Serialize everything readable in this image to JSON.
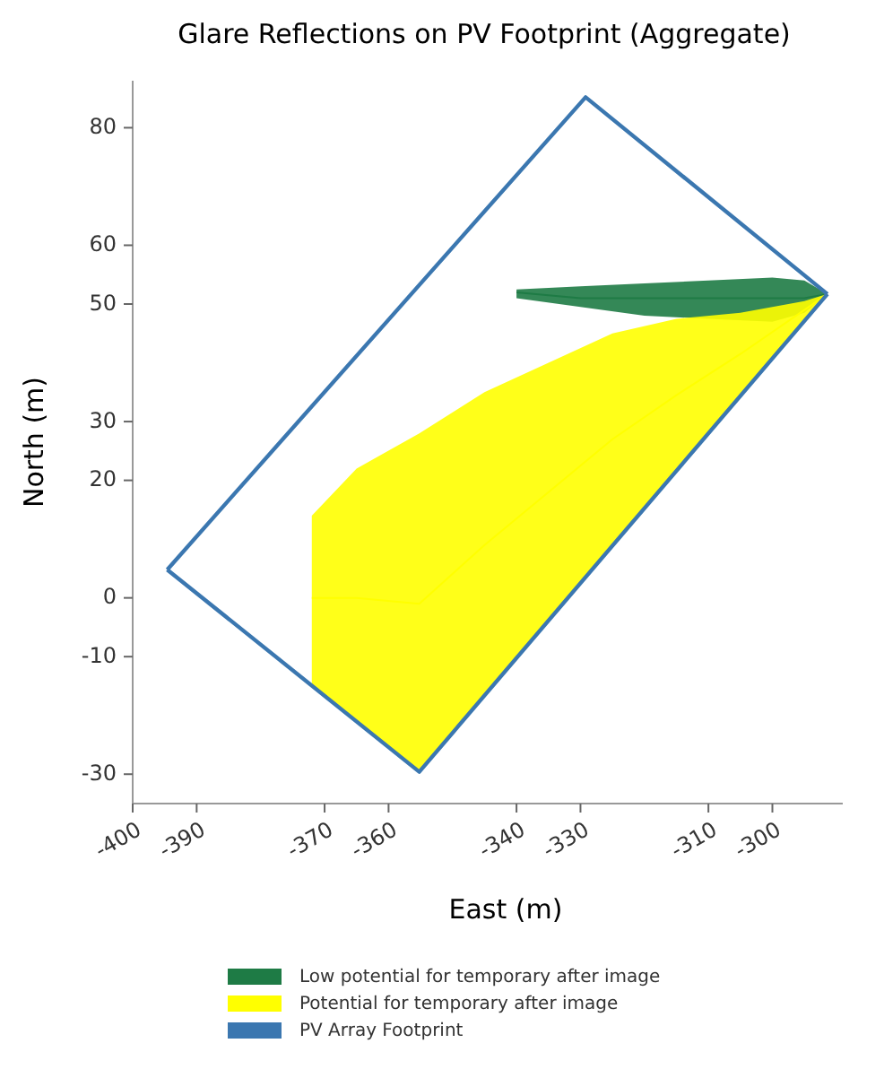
{
  "chart_data": {
    "type": "line",
    "title": "Glare Reflections on PV Footprint (Aggregate)",
    "xlabel": "East (m)",
    "ylabel": "North (m)",
    "xlim": [
      -400,
      -289
    ],
    "ylim": [
      -35,
      88
    ],
    "xticks": [
      -400,
      -390,
      -370,
      -360,
      -340,
      -330,
      -310,
      -300
    ],
    "yticks": [
      80,
      60,
      50,
      30,
      20,
      0,
      -10,
      -30
    ],
    "grid": false,
    "legend": "bottom",
    "series": [
      {
        "name": "Low potential for temporary after image",
        "color": "#1e7b45",
        "x": [
          -340,
          -330,
          -320,
          -310,
          -300,
          -295,
          -291.4
        ],
        "values": [
          52,
          51,
          51,
          51,
          51,
          51,
          51.7
        ],
        "lower": [
          51,
          49.5,
          48,
          47.5,
          47,
          48.5,
          51.7
        ],
        "upper": [
          52.5,
          53,
          53.5,
          54,
          54.5,
          54,
          51.7
        ]
      },
      {
        "name": "Potential for temporary after image",
        "color": "#ffff00",
        "x": [
          -372,
          -365,
          -355.2,
          -345,
          -335,
          -325,
          -315,
          -305,
          -295,
          -291.4
        ],
        "values": [
          0,
          0,
          -1,
          9,
          18,
          27,
          34.5,
          41.5,
          49,
          51.7
        ],
        "lower": [
          -14.9,
          -21,
          -29.6,
          -16.6,
          -3.9,
          8.9,
          21.6,
          34.4,
          47.1,
          51.7
        ],
        "upper": [
          14,
          22,
          28,
          35,
          40,
          45,
          47.5,
          48.5,
          50.5,
          51.7
        ]
      },
      {
        "name": "PV Array Footprint",
        "color": "#3b77b0",
        "x": [
          -394.6,
          -329.2,
          -291.4
        ],
        "values": [
          4.8,
          85.2,
          51.7
        ]
      },
      {
        "color": "#3b77b0",
        "x": [
          -394.6,
          -355.2,
          -291.4
        ],
        "values": [
          4.8,
          -29.6,
          51.7
        ]
      }
    ]
  }
}
